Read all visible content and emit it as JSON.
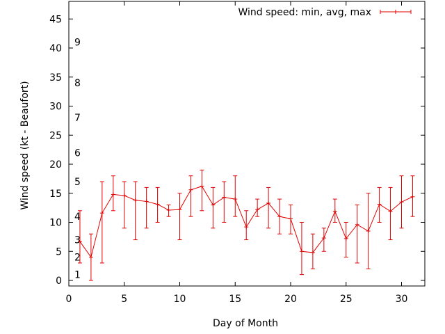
{
  "chart_data": {
    "type": "line",
    "title": "",
    "xlabel": "Day of Month",
    "ylabel": "Wind speed (kt - Beaufort)",
    "xlim": [
      0,
      32
    ],
    "ylim": [
      -1,
      48
    ],
    "x_ticks": [
      0,
      5,
      10,
      15,
      20,
      25,
      30
    ],
    "y_ticks": [
      0,
      5,
      10,
      15,
      20,
      25,
      30,
      35,
      40,
      45
    ],
    "grid": false,
    "legend_position": "top-right",
    "series_color": "#e00000",
    "beaufort_labels": [
      {
        "label": "1",
        "kt": 1
      },
      {
        "label": "2",
        "kt": 4
      },
      {
        "label": "3",
        "kt": 7
      },
      {
        "label": "4",
        "kt": 11
      },
      {
        "label": "5",
        "kt": 17
      },
      {
        "label": "6",
        "kt": 22
      },
      {
        "label": "7",
        "kt": 28
      },
      {
        "label": "8",
        "kt": 34
      },
      {
        "label": "9",
        "kt": 41
      }
    ],
    "series": [
      {
        "name": "Wind speed: min, avg, max",
        "x": [
          1,
          2,
          3,
          4,
          5,
          6,
          7,
          8,
          9,
          10,
          11,
          12,
          13,
          14,
          15,
          16,
          17,
          18,
          19,
          20,
          21,
          22,
          23,
          24,
          25,
          26,
          27,
          28,
          29,
          30,
          31
        ],
        "avg": [
          6.7,
          4.0,
          11.6,
          14.8,
          14.6,
          13.8,
          13.6,
          13.1,
          12.1,
          12.2,
          15.6,
          16.2,
          13.0,
          14.3,
          14.0,
          9.2,
          12.2,
          13.3,
          11.0,
          10.6,
          5.0,
          4.8,
          7.3,
          11.9,
          7.2,
          9.6,
          8.5,
          13.1,
          11.9,
          13.5,
          14.4
        ],
        "min": [
          3,
          0,
          3,
          12,
          9,
          7,
          9,
          10,
          11,
          7,
          11,
          12,
          9,
          10,
          11,
          7,
          11,
          9,
          8,
          8,
          1,
          2,
          5,
          10,
          4,
          3,
          2,
          10,
          7,
          9,
          11
        ],
        "max": [
          12,
          8,
          17,
          18,
          17,
          17,
          16,
          16,
          13,
          15,
          18,
          19,
          16,
          17,
          18,
          12,
          14,
          16,
          14,
          13,
          10,
          8,
          9,
          14,
          10,
          13,
          15,
          16,
          16,
          18,
          18
        ]
      }
    ]
  }
}
